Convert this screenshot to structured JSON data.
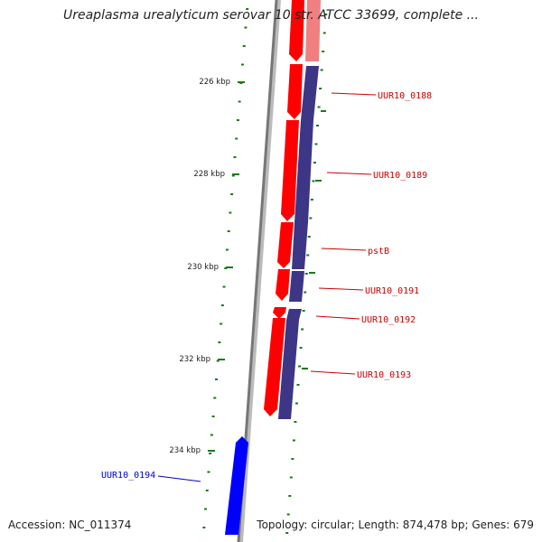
{
  "title": "Ureaplasma urealyticum serovar 10 str. ATCC 33699, complete ...",
  "ruler": {
    "ticks": [
      {
        "label": "226 kbp"
      },
      {
        "label": "228 kbp"
      },
      {
        "label": "230 kbp"
      },
      {
        "label": "232 kbp"
      },
      {
        "label": "234 kbp"
      }
    ]
  },
  "genes": [
    {
      "label": "UUR10_0188",
      "color": "#cc0000"
    },
    {
      "label": "UUR10_0189",
      "color": "#cc0000"
    },
    {
      "label": "pstB",
      "color": "#cc0000"
    },
    {
      "label": "UUR10_0191",
      "color": "#cc0000"
    },
    {
      "label": "UUR10_0192",
      "color": "#cc0000"
    },
    {
      "label": "UUR10_0193",
      "color": "#cc0000"
    },
    {
      "label": "UUR10_0194",
      "color": "#0000cc"
    }
  ],
  "colors": {
    "forward_feature": "#ff0000",
    "reverse_feature": "#0000ff",
    "cds_track": "#3d3585",
    "tick": "#1a7a1a",
    "backbone": "#888888"
  },
  "footer": {
    "accession": "Accession: NC_011374",
    "topology": "Topology: circular; Length: 874,478 bp; Genes: 679"
  }
}
